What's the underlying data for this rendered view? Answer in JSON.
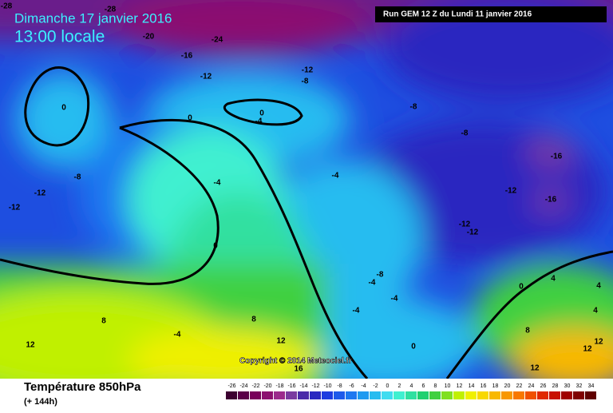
{
  "header": {
    "date": "Dimanche 17 janvier 2016",
    "time": "13:00 locale",
    "run": "Run GEM 12 Z du Lundi 11 janvier 2016"
  },
  "copyright": "Copyright © 2014 Meteociel.fr",
  "footer": {
    "title": "Température 850hPa",
    "lead": "(+ 144h)"
  },
  "contour_labels": [
    "-28",
    "-28",
    "-20",
    "-24",
    "-16",
    "-12",
    "-12",
    "-8",
    "0",
    "0",
    "0",
    "-4",
    "-8",
    "-8",
    "-16",
    "-8",
    "-4",
    "-4",
    "-12",
    "-12",
    "-12",
    "-16",
    "-12",
    "-12",
    "0",
    "-8",
    "-4",
    "-4",
    "-4",
    "0",
    "4",
    "4",
    "8",
    "8",
    "-4",
    "4",
    "12",
    "12",
    "0",
    "8",
    "12",
    "12",
    "16",
    "12"
  ],
  "scale": {
    "values": [
      -26,
      -24,
      -22,
      -20,
      -18,
      -16,
      -14,
      -12,
      -10,
      -8,
      -6,
      -4,
      -2,
      0,
      2,
      4,
      6,
      8,
      10,
      12,
      14,
      16,
      18,
      20,
      22,
      24,
      26,
      28,
      30,
      32,
      34
    ],
    "colors": [
      "#3c0030",
      "#5a0048",
      "#78005a",
      "#8c1070",
      "#9c2a8c",
      "#7a3aa0",
      "#4a2aa8",
      "#2a28c0",
      "#1e3ce0",
      "#1e5aea",
      "#1e78f0",
      "#1e9af0",
      "#28bcf0",
      "#40dcf0",
      "#40f0d0",
      "#30e0a0",
      "#20d070",
      "#40d040",
      "#80e020",
      "#c0f000",
      "#f0f000",
      "#f8d800",
      "#f8b800",
      "#f89800",
      "#f87800",
      "#f05000",
      "#e02800",
      "#c81000",
      "#a00000",
      "#800000",
      "#600000"
    ]
  }
}
